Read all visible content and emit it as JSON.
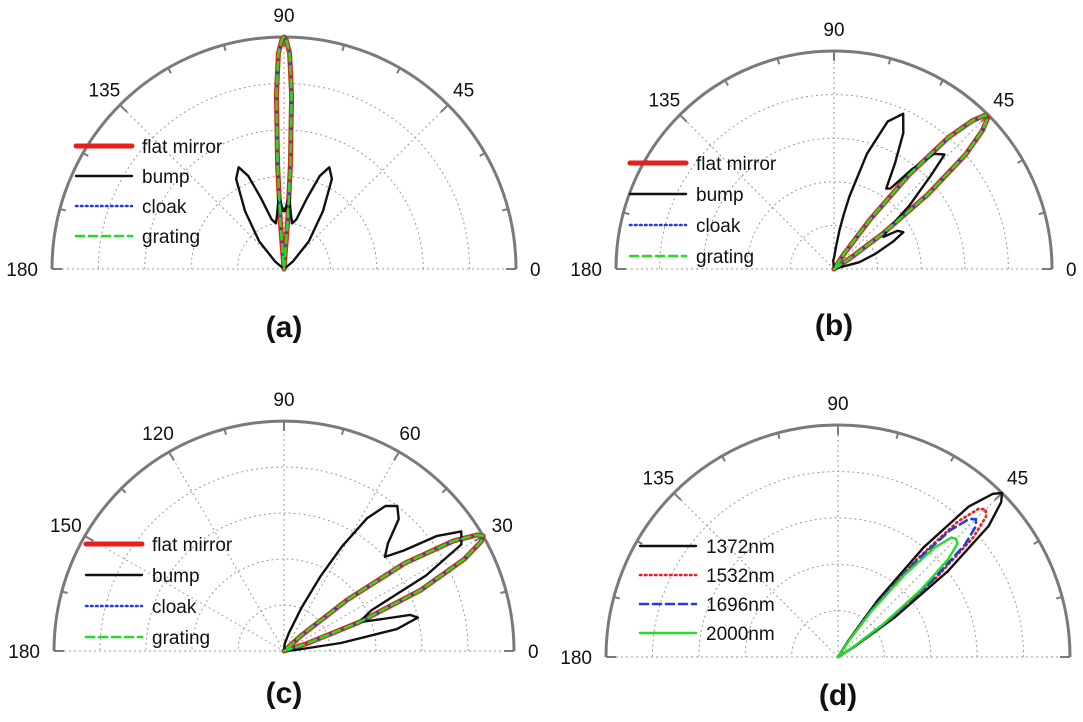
{
  "chart_data": [
    {
      "type": "polar-line",
      "panel_label": "(a)",
      "angle_range_deg": [
        0,
        180
      ],
      "angle_ticks": [
        "0",
        "45",
        "90",
        "135",
        "180"
      ],
      "grid": true,
      "legend_position": "left",
      "series": [
        {
          "name": "flat mirror",
          "color": "#e8201c",
          "style": "solid-thick",
          "theta": [
            85.5,
            86.5,
            87.5,
            88.5,
            89.5,
            90,
            90.5,
            91.5,
            92.5,
            93.5,
            94.5
          ],
          "r": [
            0.2,
            0.45,
            0.75,
            0.93,
            0.99,
            1.0,
            0.99,
            0.93,
            0.75,
            0.45,
            0.2
          ]
        },
        {
          "name": "bump",
          "color": "#111111",
          "style": "solid",
          "theta": [
            40,
            48,
            56,
            62,
            66,
            69,
            72,
            76,
            80,
            83,
            86,
            87.5,
            89,
            90,
            91,
            92.5,
            94,
            97,
            100,
            104,
            108,
            111,
            114,
            118,
            124,
            132,
            140
          ],
          "r": [
            0.05,
            0.16,
            0.3,
            0.44,
            0.48,
            0.43,
            0.32,
            0.22,
            0.2,
            0.24,
            0.32,
            0.28,
            0.25,
            0.26,
            0.25,
            0.28,
            0.32,
            0.24,
            0.2,
            0.22,
            0.32,
            0.43,
            0.48,
            0.44,
            0.3,
            0.16,
            0.05
          ]
        },
        {
          "name": "cloak",
          "color": "#1f3fd6",
          "style": "dotted",
          "theta": [
            85.5,
            86.5,
            87.5,
            88.5,
            89.5,
            90,
            90.5,
            91.5,
            92.5,
            93.5,
            94.5
          ],
          "r": [
            0.2,
            0.45,
            0.75,
            0.93,
            0.99,
            1.0,
            0.99,
            0.93,
            0.75,
            0.45,
            0.2
          ]
        },
        {
          "name": "grating",
          "color": "#22dd22",
          "style": "dashed",
          "theta": [
            85.5,
            86.5,
            87.5,
            88.5,
            89.5,
            90,
            90.5,
            91.5,
            92.5,
            93.5,
            94.5
          ],
          "r": [
            0.2,
            0.45,
            0.75,
            0.93,
            0.99,
            1.0,
            0.99,
            0.93,
            0.75,
            0.45,
            0.2
          ]
        }
      ]
    },
    {
      "type": "polar-line",
      "panel_label": "(b)",
      "angle_range_deg": [
        0,
        180
      ],
      "angle_ticks": [
        "0",
        "45",
        "90",
        "135",
        "180"
      ],
      "grid": true,
      "legend_position": "left",
      "series": [
        {
          "name": "flat mirror",
          "color": "#e8201c",
          "style": "solid-thick",
          "theta": [
            33.5,
            36,
            38.5,
            41,
            43,
            44.5,
            45.5,
            47,
            49,
            51.5,
            54,
            56.5
          ],
          "r": [
            0.08,
            0.28,
            0.55,
            0.8,
            0.93,
            0.99,
            0.99,
            0.93,
            0.8,
            0.55,
            0.28,
            0.08
          ]
        },
        {
          "name": "bump",
          "color": "#111111",
          "style": "solid",
          "theta": [
            15,
            20,
            25,
            28,
            31,
            33,
            36,
            40,
            44,
            46,
            49,
            52,
            55,
            57,
            60,
            63,
            66,
            70,
            74,
            78,
            80,
            82,
            85,
            90,
            95
          ],
          "r": [
            0.12,
            0.2,
            0.3,
            0.36,
            0.34,
            0.27,
            0.3,
            0.45,
            0.62,
            0.73,
            0.7,
            0.58,
            0.45,
            0.44,
            0.56,
            0.7,
            0.78,
            0.72,
            0.55,
            0.34,
            0.25,
            0.18,
            0.1,
            0.05,
            0.04
          ]
        },
        {
          "name": "cloak",
          "color": "#1f3fd6",
          "style": "dotted",
          "theta": [
            33.5,
            36,
            38.5,
            41,
            43,
            44.5,
            45.5,
            47,
            49,
            51.5,
            54,
            56.5
          ],
          "r": [
            0.08,
            0.28,
            0.55,
            0.8,
            0.93,
            0.99,
            0.99,
            0.93,
            0.8,
            0.55,
            0.28,
            0.08
          ]
        },
        {
          "name": "grating",
          "color": "#22dd22",
          "style": "dashed",
          "theta": [
            33.5,
            36,
            38.5,
            41,
            43,
            44.5,
            45.5,
            47,
            49,
            51.5,
            54,
            56.5
          ],
          "r": [
            0.08,
            0.28,
            0.55,
            0.8,
            0.93,
            0.99,
            0.99,
            0.93,
            0.8,
            0.55,
            0.28,
            0.08
          ]
        }
      ]
    },
    {
      "type": "polar-line",
      "panel_label": "(c)",
      "angle_range_deg": [
        0,
        180
      ],
      "angle_ticks": [
        "0",
        "30",
        "60",
        "90",
        "120",
        "150",
        "180"
      ],
      "grid": true,
      "legend_position": "left",
      "series": [
        {
          "name": "flat mirror",
          "color": "#e8201c",
          "style": "solid-thick",
          "theta": [
            18,
            21,
            24,
            27,
            29,
            30,
            31,
            33,
            36,
            39,
            42
          ],
          "r": [
            0.1,
            0.35,
            0.65,
            0.88,
            0.98,
            1.0,
            0.98,
            0.88,
            0.65,
            0.35,
            0.1
          ]
        },
        {
          "name": "bump",
          "color": "#111111",
          "style": "solid",
          "theta": [
            5,
            8,
            11,
            14,
            16,
            18,
            21,
            25,
            28,
            31,
            34,
            37,
            40,
            43,
            46,
            49,
            52,
            55,
            58,
            61,
            64,
            68,
            75,
            85
          ],
          "r": [
            0.05,
            0.25,
            0.5,
            0.6,
            0.57,
            0.45,
            0.35,
            0.42,
            0.7,
            0.9,
            0.93,
            0.83,
            0.68,
            0.6,
            0.65,
            0.76,
            0.8,
            0.77,
            0.68,
            0.52,
            0.36,
            0.2,
            0.08,
            0.03
          ]
        },
        {
          "name": "cloak",
          "color": "#1f3fd6",
          "style": "dotted",
          "theta": [
            18,
            21,
            24,
            27,
            29,
            30,
            31,
            33,
            36,
            39,
            42
          ],
          "r": [
            0.1,
            0.35,
            0.65,
            0.88,
            0.98,
            1.0,
            0.98,
            0.88,
            0.65,
            0.35,
            0.1
          ]
        },
        {
          "name": "grating",
          "color": "#22dd22",
          "style": "dashed",
          "theta": [
            18,
            21,
            24,
            27,
            29,
            30,
            31,
            33,
            36,
            39,
            42
          ],
          "r": [
            0.1,
            0.35,
            0.65,
            0.88,
            0.98,
            1.0,
            0.98,
            0.88,
            0.65,
            0.35,
            0.1
          ]
        }
      ]
    },
    {
      "type": "polar-line",
      "panel_label": "(d)",
      "angle_range_deg": [
        0,
        180
      ],
      "angle_ticks": [
        "0",
        "45",
        "90",
        "135",
        "180"
      ],
      "grid": true,
      "legend_position": "left",
      "series": [
        {
          "name": "1372nm",
          "color": "#111111",
          "style": "solid",
          "theta": [
            32,
            35,
            38,
            41,
            43.5,
            45,
            46.5,
            49,
            52,
            55,
            58
          ],
          "r": [
            0.08,
            0.3,
            0.6,
            0.86,
            0.97,
            1.0,
            0.97,
            0.86,
            0.6,
            0.3,
            0.08
          ]
        },
        {
          "name": "1532nm",
          "color": "#e8201c",
          "style": "dotted",
          "theta": [
            33,
            36,
            39,
            41.5,
            43.5,
            45,
            46.5,
            48.5,
            51,
            54,
            57
          ],
          "r": [
            0.08,
            0.28,
            0.55,
            0.78,
            0.88,
            0.9,
            0.88,
            0.78,
            0.55,
            0.28,
            0.08
          ]
        },
        {
          "name": "1696nm",
          "color": "#1f3fd6",
          "style": "dashed",
          "theta": [
            33,
            36,
            39,
            41.5,
            43.5,
            45,
            46.5,
            48.5,
            51,
            54,
            57
          ],
          "r": [
            0.08,
            0.27,
            0.52,
            0.73,
            0.82,
            0.84,
            0.82,
            0.73,
            0.52,
            0.27,
            0.08
          ]
        },
        {
          "name": "2000nm",
          "color": "#22dd22",
          "style": "solid",
          "theta": [
            33,
            36,
            39,
            41.5,
            43.5,
            45,
            46.5,
            48.5,
            51,
            54,
            57
          ],
          "r": [
            0.07,
            0.24,
            0.46,
            0.63,
            0.71,
            0.72,
            0.71,
            0.63,
            0.46,
            0.24,
            0.07
          ]
        }
      ]
    }
  ]
}
